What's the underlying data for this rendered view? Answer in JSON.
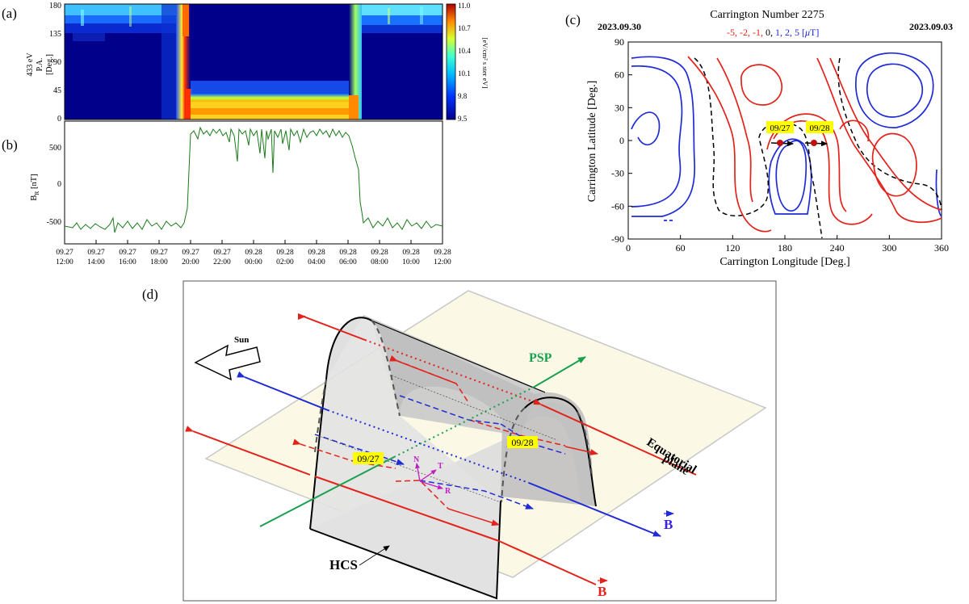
{
  "panel_labels": {
    "a": "(a)",
    "b": "(b)",
    "c": "(c)",
    "d": "(d)"
  },
  "colors": {
    "blue_series": "#1f2bd6",
    "red_series": "#e3231b",
    "black_series": "#000000",
    "green": "#1a7a1a",
    "psp_green": "#1aa050",
    "label_yellow": "#ffff00",
    "field_blue": "#3a1fe0"
  },
  "panel_a": {
    "ylabel_lines": [
      "433 eV",
      "P.A.",
      "[Deg.]"
    ],
    "yticks": [
      "180",
      "135",
      "90",
      "45",
      "0"
    ],
    "colorbar_ticks": [
      "11.0",
      "10.7",
      "10.4",
      "10.1",
      "9.8",
      "9.5"
    ],
    "colorbar_label": "[eV/cm² s ster eV]"
  },
  "panel_b": {
    "ylabel": "B",
    "ylabel_sub": "R",
    "ylabel_unit": " [nT]",
    "yticks": [
      "500",
      "0",
      "-500"
    ],
    "xticks": [
      {
        "date": "09.27",
        "time": "12:00"
      },
      {
        "date": "09.27",
        "time": "14:00"
      },
      {
        "date": "09.27",
        "time": "16:00"
      },
      {
        "date": "09.27",
        "time": "18:00"
      },
      {
        "date": "09.27",
        "time": "20:00"
      },
      {
        "date": "09.27",
        "time": "22:00"
      },
      {
        "date": "09.28",
        "time": "00:00"
      },
      {
        "date": "09.28",
        "time": "02:00"
      },
      {
        "date": "09.28",
        "time": "04:00"
      },
      {
        "date": "09.28",
        "time": "06:00"
      },
      {
        "date": "09.28",
        "time": "08:00"
      },
      {
        "date": "09.28",
        "time": "10:00"
      },
      {
        "date": "09.28",
        "time": "12:00"
      }
    ]
  },
  "panel_c": {
    "title": "Carrington Number 2275",
    "date_left": "2023.09.30",
    "date_right": "2023.09.03",
    "legend_red": "-5, -2, -1,",
    "legend_black": " 0,",
    "legend_blue": " 1, 2, 5 [",
    "legend_mu": "μ",
    "legend_end": "T]",
    "xlabel": "Carrington Longitude [Deg.]",
    "ylabel": "Carrington Latitude [Deg.]",
    "xticks": [
      "0",
      "60",
      "120",
      "180",
      "240",
      "300",
      "360"
    ],
    "yticks": [
      "90",
      "60",
      "30",
      "0",
      "-30",
      "-60",
      "-90"
    ],
    "marker_1": "09/27",
    "marker_2": "09/28"
  },
  "panel_d": {
    "sun": "Sun",
    "psp": "PSP",
    "equatorial_line1": "Equatorial",
    "equatorial_line2": "plane",
    "hcs": "HCS",
    "b_label": "B",
    "date_1": "09/27",
    "date_2": "09/28",
    "rtn_n": "N",
    "rtn_t": "T",
    "rtn_r": "R"
  },
  "chart_data": [
    {
      "type": "heatmap",
      "panel": "a",
      "ylabel": "433 eV P.A. [Deg.]",
      "ylim": [
        0,
        180
      ],
      "colorbar_range": [
        9.5,
        11.0
      ],
      "colorbar_label": "[eV/cm² s ster eV]"
    },
    {
      "type": "line",
      "panel": "b",
      "ylabel": "B_R [nT]",
      "x": [
        "09.27 12:00",
        "09.27 19:50",
        "09.27 20:10",
        "09.28 06:40",
        "09.28 07:00",
        "09.28 12:00"
      ],
      "values": [
        -590,
        -550,
        700,
        640,
        -580,
        -560
      ],
      "ylim": [
        -700,
        800
      ]
    },
    {
      "type": "line",
      "panel": "c",
      "title": "Carrington Number 2275",
      "xlabel": "Carrington Longitude [Deg.]",
      "ylabel": "Carrington Latitude [Deg.]",
      "xlim": [
        0,
        360
      ],
      "ylim": [
        -90,
        90
      ],
      "series": [
        {
          "name": "-5, -2, -1",
          "color": "red"
        },
        {
          "name": "0",
          "color": "black"
        },
        {
          "name": "1, 2, 5",
          "color": "blue"
        }
      ],
      "points": [
        {
          "label": "09/27",
          "lon": 180,
          "lat": -3
        },
        {
          "label": "09/28",
          "lon": 223,
          "lat": -3
        }
      ]
    }
  ]
}
